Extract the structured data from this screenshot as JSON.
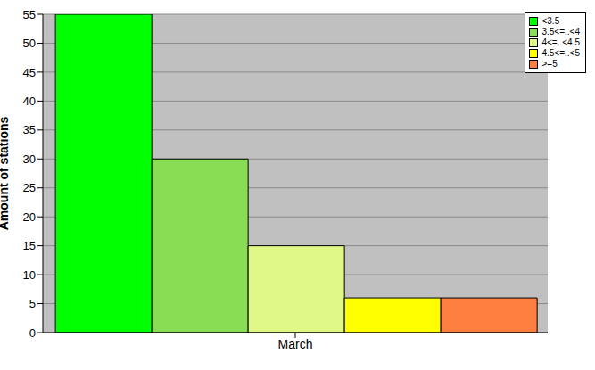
{
  "chart_data": {
    "type": "bar",
    "categories": [
      "March"
    ],
    "series": [
      {
        "name": "<3.5",
        "color": "#00ff00",
        "values": [
          55
        ]
      },
      {
        "name": "3.5<=..<4",
        "color": "#88dd55",
        "values": [
          30
        ]
      },
      {
        "name": "4<=..<4.5",
        "color": "#e0f888",
        "values": [
          15
        ]
      },
      {
        "name": "4.5<=..<5",
        "color": "#ffff00",
        "values": [
          6
        ]
      },
      {
        "name": ">=5",
        "color": "#ff7f40",
        "values": [
          6
        ]
      }
    ],
    "ylabel": "Amount of stations",
    "ylim": [
      0,
      55
    ],
    "yticks": [
      0,
      5,
      10,
      15,
      20,
      25,
      30,
      35,
      40,
      45,
      50,
      55
    ],
    "grid": true,
    "legend": "upper right"
  }
}
